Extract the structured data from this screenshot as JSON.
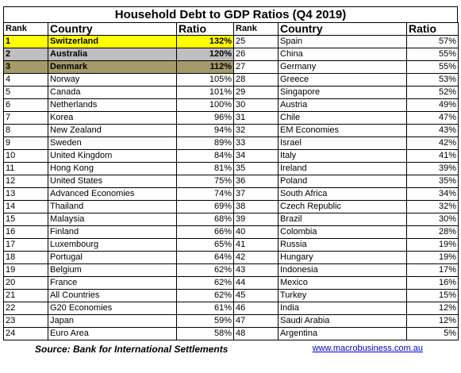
{
  "title": "Household Debt to GDP Ratios (Q4 2019)",
  "headers": {
    "rank": "Rank",
    "country": "Country",
    "ratio": "Ratio"
  },
  "left": [
    [
      "1",
      "Switzerland",
      "132%"
    ],
    [
      "2",
      "Australia",
      "120%"
    ],
    [
      "3",
      "Denmark",
      "112%"
    ],
    [
      "4",
      "Norway",
      "105%"
    ],
    [
      "5",
      "Canada",
      "101%"
    ],
    [
      "6",
      "Netherlands",
      "100%"
    ],
    [
      "7",
      "Korea",
      "96%"
    ],
    [
      "8",
      "New Zealand",
      "94%"
    ],
    [
      "9",
      "Sweden",
      "89%"
    ],
    [
      "10",
      "United Kingdom",
      "84%"
    ],
    [
      "11",
      "Hong Kong",
      "81%"
    ],
    [
      "12",
      "United States",
      "75%"
    ],
    [
      "13",
      "Advanced Economies",
      "74%"
    ],
    [
      "14",
      "Thailand",
      "69%"
    ],
    [
      "15",
      "Malaysia",
      "68%"
    ],
    [
      "16",
      "Finland",
      "66%"
    ],
    [
      "17",
      "Luxembourg",
      "65%"
    ],
    [
      "18",
      "Portugal",
      "64%"
    ],
    [
      "19",
      "Belgium",
      "62%"
    ],
    [
      "20",
      "France",
      "62%"
    ],
    [
      "21",
      "All Countries",
      "62%"
    ],
    [
      "22",
      "G20 Economies",
      "61%"
    ],
    [
      "23",
      "Japan",
      "59%"
    ],
    [
      "24",
      "Euro Area",
      "58%"
    ]
  ],
  "right": [
    [
      "25",
      "Spain",
      "57%"
    ],
    [
      "26",
      "China",
      "55%"
    ],
    [
      "27",
      "Germany",
      "55%"
    ],
    [
      "28",
      "Greece",
      "53%"
    ],
    [
      "29",
      "Singapore",
      "52%"
    ],
    [
      "30",
      "Austria",
      "49%"
    ],
    [
      "31",
      "Chile",
      "47%"
    ],
    [
      "32",
      "EM Economies",
      "43%"
    ],
    [
      "33",
      "Israel",
      "42%"
    ],
    [
      "34",
      "Italy",
      "41%"
    ],
    [
      "35",
      "Ireland",
      "39%"
    ],
    [
      "36",
      "Poland",
      "35%"
    ],
    [
      "37",
      "South Africa",
      "34%"
    ],
    [
      "38",
      "Czech Republic",
      "32%"
    ],
    [
      "39",
      "Brazil",
      "30%"
    ],
    [
      "40",
      "Colombia",
      "28%"
    ],
    [
      "41",
      "Russia",
      "19%"
    ],
    [
      "42",
      "Hungary",
      "19%"
    ],
    [
      "43",
      "Indonesia",
      "17%"
    ],
    [
      "44",
      "Mexico",
      "16%"
    ],
    [
      "45",
      "Turkey",
      "15%"
    ],
    [
      "46",
      "India",
      "12%"
    ],
    [
      "47",
      "Saudi Arabia",
      "12%"
    ],
    [
      "48",
      "Argentina",
      "5%"
    ]
  ],
  "highlights": {
    "1": "yellow",
    "2": "gray",
    "3": "olive"
  },
  "colors": {
    "yellow": "#ffff00",
    "gray": "#bfbfbf",
    "olive": "#a59a6a",
    "link": "#0000cc"
  },
  "footer": {
    "source": "Source: Bank for International Settlements",
    "site": "www.macrobusiness.com.au"
  }
}
